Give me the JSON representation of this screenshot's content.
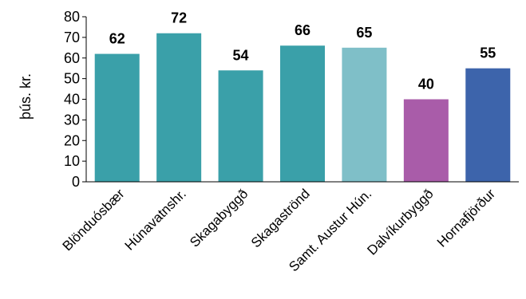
{
  "chart_data": {
    "type": "bar",
    "title": "",
    "xlabel": "",
    "ylabel": "þús. kr.",
    "ylim": [
      0,
      80
    ],
    "yticks": [
      0,
      10,
      20,
      30,
      40,
      50,
      60,
      70,
      80
    ],
    "grid": false,
    "categories": [
      "Blönduósbær",
      "Húnavatnshr.",
      "Skagabyggð",
      "Skagaströnd",
      "Samt. Austur Hún.",
      "Dalvíkurbyggð",
      "Hornafjörður"
    ],
    "values": [
      62,
      72,
      54,
      66,
      65,
      40,
      55
    ],
    "data_labels": [
      "62",
      "72",
      "54",
      "66",
      "65",
      "40",
      "55"
    ],
    "bar_colors": [
      "#3aa0a9",
      "#3aa0a9",
      "#3aa0a9",
      "#3aa0a9",
      "#7fbfc8",
      "#a95ca9",
      "#3d64ab"
    ]
  }
}
